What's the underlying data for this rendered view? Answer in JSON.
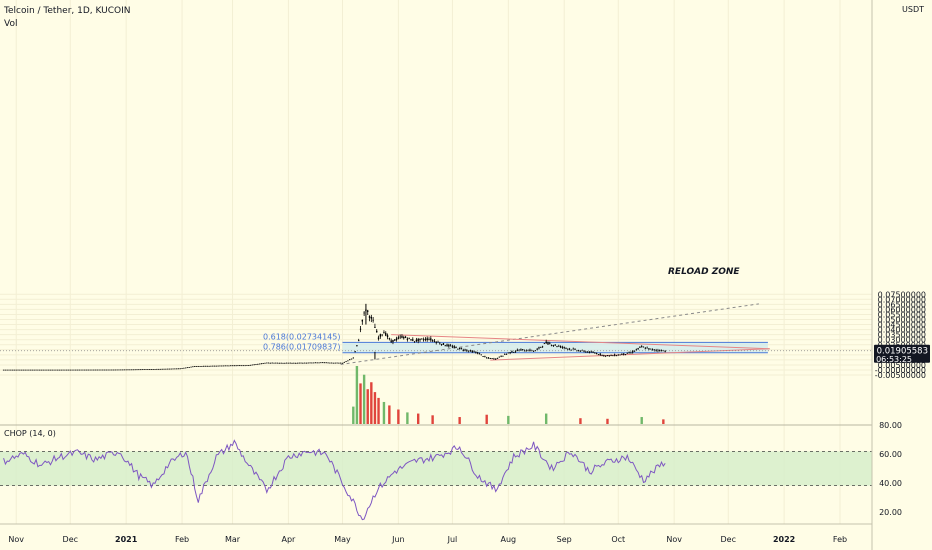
{
  "header": {
    "symbol": "Telcoin / Tether, 1D, KUCOIN",
    "volume_label": "Vol",
    "currency": "USDT"
  },
  "price_axis": {
    "ticks": [
      "0.07500000",
      "0.07000000",
      "0.06500000",
      "0.06000000",
      "0.05500000",
      "0.05000000",
      "0.04500000",
      "0.04000000",
      "0.03500000",
      "0.03000000",
      "0.02500000",
      "0.02000000",
      "0.01500000",
      "0.01000000",
      "0.00500000",
      "-0.00000000",
      "-0.00500000"
    ],
    "tick_values": [
      0.075,
      0.07,
      0.065,
      0.06,
      0.055,
      0.05,
      0.045,
      0.04,
      0.035,
      0.03,
      0.025,
      0.02,
      0.015,
      0.01,
      0.005,
      0.0,
      -0.005
    ],
    "current_price": "0.01905583",
    "countdown": "06:53:25"
  },
  "indicator": {
    "label": "CHOP (14, 0)",
    "ticks": [
      "80.00",
      "60.00",
      "40.00",
      "20.00"
    ],
    "tick_values": [
      80,
      60,
      40,
      20
    ],
    "upper_band": 61.8,
    "lower_band": 38.2
  },
  "time_axis": {
    "labels": [
      "Nov",
      "Dec",
      "2021",
      "Feb",
      "Mar",
      "Apr",
      "May",
      "Jun",
      "Jul",
      "Aug",
      "Sep",
      "Oct",
      "Nov",
      "Dec",
      "2022",
      "Feb"
    ],
    "label_days": [
      0,
      30,
      61,
      92,
      120,
      151,
      181,
      212,
      242,
      273,
      304,
      334,
      365,
      395,
      426,
      457
    ]
  },
  "annotations": {
    "fib_upper": "0.618(0.02734145)",
    "fib_upper_value": 0.02734145,
    "fib_lower": "0.786(0.01709837)",
    "fib_lower_value": 0.01709837,
    "zone_label": "RELOAD ZONE"
  },
  "colors": {
    "background": "#fffde6",
    "candle": "#000000",
    "vol_up": "#70b86a",
    "vol_down": "#e0443c",
    "fib_line": "#4a78d8",
    "fib_fill": "#cfe9ee",
    "triangle": "#e68585",
    "trend": "#8a8a8a",
    "chop_line": "#7e57c2",
    "chop_band": "#d5edc9",
    "price_label": "#131722"
  },
  "chart_data": {
    "type": "candlestick",
    "title": "Telcoin / Tether, 1D, KUCOIN",
    "price_path": [
      {
        "date": "2020-10-25",
        "price": 0.0003
      },
      {
        "date": "2020-11-25",
        "price": 0.0003
      },
      {
        "date": "2020-12-25",
        "price": 0.0004
      },
      {
        "date": "2021-01-05",
        "price": 0.0006
      },
      {
        "date": "2021-01-20",
        "price": 0.0011
      },
      {
        "date": "2021-01-31",
        "price": 0.0016
      },
      {
        "date": "2021-02-08",
        "price": 0.0038
      },
      {
        "date": "2021-02-25",
        "price": 0.0044
      },
      {
        "date": "2021-03-10",
        "price": 0.0048
      },
      {
        "date": "2021-03-20",
        "price": 0.0072
      },
      {
        "date": "2021-04-05",
        "price": 0.007
      },
      {
        "date": "2021-04-20",
        "price": 0.0075
      },
      {
        "date": "2021-05-01",
        "price": 0.007
      },
      {
        "date": "2021-05-07",
        "price": 0.012
      },
      {
        "date": "2021-05-10",
        "price": 0.03
      },
      {
        "date": "2021-05-12",
        "price": 0.05
      },
      {
        "date": "2021-05-14",
        "price": 0.06
      },
      {
        "date": "2021-05-18",
        "price": 0.048
      },
      {
        "date": "2021-05-21",
        "price": 0.032
      },
      {
        "date": "2021-05-24",
        "price": 0.038
      },
      {
        "date": "2021-05-28",
        "price": 0.028
      },
      {
        "date": "2021-06-03",
        "price": 0.033
      },
      {
        "date": "2021-06-10",
        "price": 0.029
      },
      {
        "date": "2021-06-18",
        "price": 0.031
      },
      {
        "date": "2021-06-25",
        "price": 0.026
      },
      {
        "date": "2021-07-01",
        "price": 0.023
      },
      {
        "date": "2021-07-08",
        "price": 0.02
      },
      {
        "date": "2021-07-15",
        "price": 0.017
      },
      {
        "date": "2021-07-20",
        "price": 0.012
      },
      {
        "date": "2021-07-25",
        "price": 0.011
      },
      {
        "date": "2021-08-01",
        "price": 0.017
      },
      {
        "date": "2021-08-08",
        "price": 0.02
      },
      {
        "date": "2021-08-16",
        "price": 0.019
      },
      {
        "date": "2021-08-22",
        "price": 0.027
      },
      {
        "date": "2021-08-28",
        "price": 0.024
      },
      {
        "date": "2021-09-04",
        "price": 0.021
      },
      {
        "date": "2021-09-10",
        "price": 0.019
      },
      {
        "date": "2021-09-18",
        "price": 0.017
      },
      {
        "date": "2021-09-24",
        "price": 0.014
      },
      {
        "date": "2021-10-01",
        "price": 0.015
      },
      {
        "date": "2021-10-08",
        "price": 0.017
      },
      {
        "date": "2021-10-14",
        "price": 0.023
      },
      {
        "date": "2021-10-20",
        "price": 0.02
      },
      {
        "date": "2021-10-27",
        "price": 0.0191
      }
    ],
    "volume_bars": [
      {
        "date": "2021-05-07",
        "volume_pct": 30,
        "dir": "up"
      },
      {
        "date": "2021-05-09",
        "volume_pct": 100,
        "dir": "up"
      },
      {
        "date": "2021-05-11",
        "volume_pct": 70,
        "dir": "down"
      },
      {
        "date": "2021-05-13",
        "volume_pct": 85,
        "dir": "up"
      },
      {
        "date": "2021-05-15",
        "volume_pct": 60,
        "dir": "down"
      },
      {
        "date": "2021-05-17",
        "volume_pct": 72,
        "dir": "down"
      },
      {
        "date": "2021-05-19",
        "volume_pct": 55,
        "dir": "down"
      },
      {
        "date": "2021-05-21",
        "volume_pct": 45,
        "dir": "down"
      },
      {
        "date": "2021-05-24",
        "volume_pct": 38,
        "dir": "up"
      },
      {
        "date": "2021-05-27",
        "volume_pct": 32,
        "dir": "down"
      },
      {
        "date": "2021-06-01",
        "volume_pct": 25,
        "dir": "down"
      },
      {
        "date": "2021-06-06",
        "volume_pct": 20,
        "dir": "up"
      },
      {
        "date": "2021-06-12",
        "volume_pct": 18,
        "dir": "down"
      },
      {
        "date": "2021-06-20",
        "volume_pct": 15,
        "dir": "down"
      },
      {
        "date": "2021-07-05",
        "volume_pct": 12,
        "dir": "down"
      },
      {
        "date": "2021-07-20",
        "volume_pct": 16,
        "dir": "down"
      },
      {
        "date": "2021-08-01",
        "volume_pct": 14,
        "dir": "up"
      },
      {
        "date": "2021-08-22",
        "volume_pct": 18,
        "dir": "up"
      },
      {
        "date": "2021-09-10",
        "volume_pct": 10,
        "dir": "down"
      },
      {
        "date": "2021-09-25",
        "volume_pct": 9,
        "dir": "down"
      },
      {
        "date": "2021-10-14",
        "volume_pct": 12,
        "dir": "up"
      },
      {
        "date": "2021-10-26",
        "volume_pct": 8,
        "dir": "down"
      }
    ],
    "chop_path": [
      {
        "date": "2020-10-25",
        "value": 55
      },
      {
        "date": "2020-11-05",
        "value": 60
      },
      {
        "date": "2020-11-15",
        "value": 52
      },
      {
        "date": "2020-11-25",
        "value": 58
      },
      {
        "date": "2020-12-05",
        "value": 61
      },
      {
        "date": "2020-12-15",
        "value": 56
      },
      {
        "date": "2020-12-28",
        "value": 62
      },
      {
        "date": "2021-01-08",
        "value": 45
      },
      {
        "date": "2021-01-16",
        "value": 38
      },
      {
        "date": "2021-01-24",
        "value": 52
      },
      {
        "date": "2021-02-03",
        "value": 62
      },
      {
        "date": "2021-02-10",
        "value": 28
      },
      {
        "date": "2021-02-20",
        "value": 58
      },
      {
        "date": "2021-03-02",
        "value": 68
      },
      {
        "date": "2021-03-10",
        "value": 52
      },
      {
        "date": "2021-03-20",
        "value": 35
      },
      {
        "date": "2021-04-01",
        "value": 58
      },
      {
        "date": "2021-04-12",
        "value": 62
      },
      {
        "date": "2021-04-22",
        "value": 60
      },
      {
        "date": "2021-05-01",
        "value": 40
      },
      {
        "date": "2021-05-08",
        "value": 25
      },
      {
        "date": "2021-05-12",
        "value": 15
      },
      {
        "date": "2021-05-20",
        "value": 35
      },
      {
        "date": "2021-05-30",
        "value": 48
      },
      {
        "date": "2021-06-10",
        "value": 55
      },
      {
        "date": "2021-06-22",
        "value": 58
      },
      {
        "date": "2021-07-05",
        "value": 65
      },
      {
        "date": "2021-07-15",
        "value": 45
      },
      {
        "date": "2021-07-25",
        "value": 35
      },
      {
        "date": "2021-08-04",
        "value": 58
      },
      {
        "date": "2021-08-15",
        "value": 66
      },
      {
        "date": "2021-08-25",
        "value": 50
      },
      {
        "date": "2021-09-05",
        "value": 62
      },
      {
        "date": "2021-09-15",
        "value": 48
      },
      {
        "date": "2021-09-26",
        "value": 55
      },
      {
        "date": "2021-10-06",
        "value": 58
      },
      {
        "date": "2021-10-15",
        "value": 42
      },
      {
        "date": "2021-10-27",
        "value": 55
      }
    ],
    "triangle_upper": [
      {
        "date": "2021-05-28",
        "price": 0.035
      },
      {
        "date": "2021-12-24",
        "price": 0.021
      }
    ],
    "triangle_lower": [
      {
        "date": "2021-07-22",
        "price": 0.0098
      },
      {
        "date": "2021-12-24",
        "price": 0.021
      }
    ],
    "trend_line": [
      {
        "date": "2021-04-30",
        "price": 0.0055
      },
      {
        "date": "2021-12-18",
        "price": 0.0655
      }
    ]
  }
}
